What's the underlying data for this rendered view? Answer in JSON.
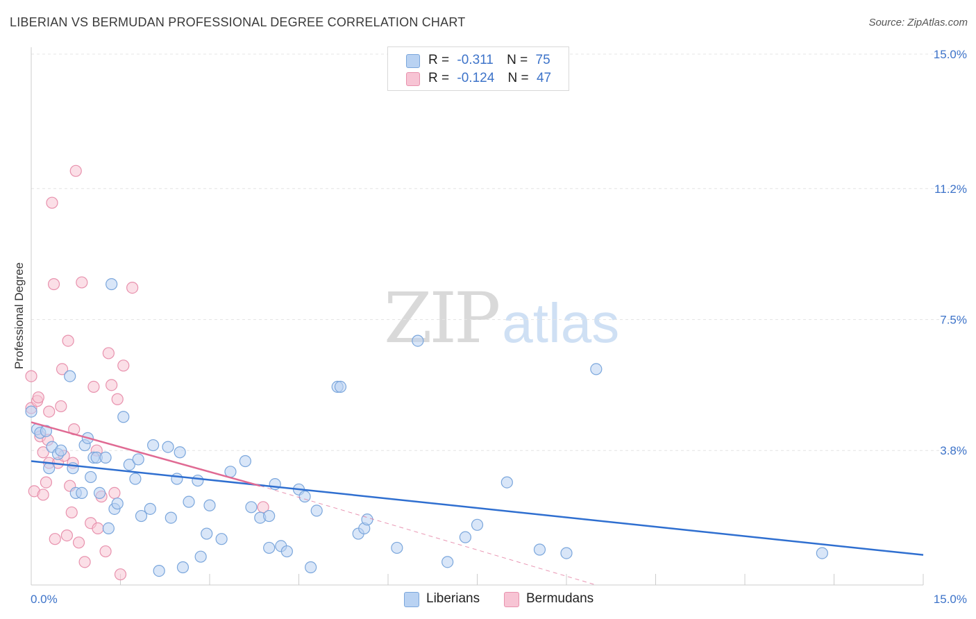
{
  "title": "LIBERIAN VS BERMUDAN PROFESSIONAL DEGREE CORRELATION CHART",
  "source": "Source: ZipAtlas.com",
  "watermark": {
    "zip": "ZIP",
    "atlas": "atlas"
  },
  "legend": {
    "rows": [
      {
        "r_label": "R =",
        "r_value": "-0.311",
        "n_label": "N =",
        "n_value": "75"
      },
      {
        "r_label": "R =",
        "r_value": "-0.124",
        "n_label": "N =",
        "n_value": "47"
      }
    ]
  },
  "bottom_legend": {
    "liberians": "Liberians",
    "bermudans": "Bermudans"
  },
  "colors": {
    "blue_fill": "#b9d2f2",
    "blue_stroke": "#7aa6dc",
    "blue_line": "#2f6fd0",
    "pink_fill": "#f7c4d4",
    "pink_stroke": "#e891ad",
    "pink_line": "#e06a93",
    "grid": "#e4e4e4",
    "tick_text": "#3d73c9"
  },
  "chart_data": {
    "type": "scatter",
    "title": "LIBERIAN VS BERMUDAN PROFESSIONAL DEGREE CORRELATION CHART",
    "xlabel": "",
    "ylabel": "Professional Degree",
    "xlim": [
      0,
      15
    ],
    "ylim": [
      0,
      15
    ],
    "x_tick_labels": [
      "0.0%",
      "15.0%"
    ],
    "y_ticks": [
      3.8,
      7.5,
      11.2,
      15.0
    ],
    "y_tick_labels": [
      "3.8%",
      "7.5%",
      "11.2%",
      "15.0%"
    ],
    "series": [
      {
        "name": "Liberians",
        "r": -0.311,
        "n": 75,
        "trend": {
          "x0": 0.0,
          "y0": 3.5,
          "x1": 15.0,
          "y1": 0.85
        },
        "points": [
          [
            0.0,
            4.9
          ],
          [
            0.1,
            4.4
          ],
          [
            0.15,
            4.3
          ],
          [
            0.25,
            4.35
          ],
          [
            0.3,
            3.3
          ],
          [
            0.35,
            3.9
          ],
          [
            0.45,
            3.7
          ],
          [
            0.5,
            3.8
          ],
          [
            0.65,
            5.9
          ],
          [
            0.7,
            3.3
          ],
          [
            0.75,
            2.6
          ],
          [
            0.85,
            2.6
          ],
          [
            0.9,
            3.95
          ],
          [
            0.95,
            4.15
          ],
          [
            1.0,
            3.05
          ],
          [
            1.05,
            3.6
          ],
          [
            1.1,
            3.6
          ],
          [
            1.15,
            2.6
          ],
          [
            1.25,
            3.6
          ],
          [
            1.3,
            1.6
          ],
          [
            1.35,
            8.5
          ],
          [
            1.4,
            2.15
          ],
          [
            1.45,
            2.3
          ],
          [
            1.55,
            4.75
          ],
          [
            1.65,
            3.4
          ],
          [
            1.75,
            3.0
          ],
          [
            1.8,
            3.55
          ],
          [
            1.85,
            1.95
          ],
          [
            2.0,
            2.15
          ],
          [
            2.05,
            3.95
          ],
          [
            2.15,
            0.4
          ],
          [
            2.3,
            3.9
          ],
          [
            2.35,
            1.9
          ],
          [
            2.45,
            3.0
          ],
          [
            2.5,
            3.75
          ],
          [
            2.55,
            0.5
          ],
          [
            2.65,
            2.35
          ],
          [
            2.8,
            2.95
          ],
          [
            2.85,
            0.8
          ],
          [
            2.95,
            1.45
          ],
          [
            3.0,
            2.25
          ],
          [
            3.2,
            1.3
          ],
          [
            3.35,
            3.2
          ],
          [
            3.6,
            3.5
          ],
          [
            3.7,
            2.2
          ],
          [
            3.85,
            1.9
          ],
          [
            4.0,
            1.05
          ],
          [
            4.0,
            1.95
          ],
          [
            4.1,
            2.85
          ],
          [
            4.2,
            1.1
          ],
          [
            4.3,
            0.95
          ],
          [
            4.5,
            2.7
          ],
          [
            4.6,
            2.5
          ],
          [
            4.7,
            0.5
          ],
          [
            4.8,
            2.1
          ],
          [
            5.15,
            5.6
          ],
          [
            5.2,
            5.6
          ],
          [
            5.5,
            1.45
          ],
          [
            5.6,
            1.6
          ],
          [
            5.65,
            1.85
          ],
          [
            6.15,
            1.05
          ],
          [
            6.5,
            6.9
          ],
          [
            7.0,
            0.65
          ],
          [
            7.3,
            1.35
          ],
          [
            7.5,
            1.7
          ],
          [
            8.0,
            2.9
          ],
          [
            8.55,
            1.0
          ],
          [
            9.0,
            0.9
          ],
          [
            9.5,
            6.1
          ],
          [
            13.3,
            0.9
          ]
        ]
      },
      {
        "name": "Bermudans",
        "r": -0.124,
        "n": 47,
        "trend": {
          "x0": 0.0,
          "y0": 4.6,
          "x1": 3.85,
          "y1": 2.8
        },
        "trend_extension": {
          "x0": 3.85,
          "y0": 2.8,
          "x1": 9.5,
          "y1": 0.0
        },
        "points": [
          [
            0.0,
            5.9
          ],
          [
            0.0,
            5.0
          ],
          [
            0.05,
            2.65
          ],
          [
            0.1,
            5.2
          ],
          [
            0.12,
            5.3
          ],
          [
            0.15,
            4.2
          ],
          [
            0.2,
            2.55
          ],
          [
            0.2,
            3.75
          ],
          [
            0.25,
            2.9
          ],
          [
            0.28,
            4.1
          ],
          [
            0.3,
            4.9
          ],
          [
            0.3,
            3.45
          ],
          [
            0.35,
            10.8
          ],
          [
            0.38,
            8.5
          ],
          [
            0.4,
            1.3
          ],
          [
            0.45,
            3.45
          ],
          [
            0.5,
            5.05
          ],
          [
            0.52,
            6.1
          ],
          [
            0.55,
            3.65
          ],
          [
            0.6,
            1.4
          ],
          [
            0.62,
            6.9
          ],
          [
            0.65,
            2.8
          ],
          [
            0.68,
            2.05
          ],
          [
            0.7,
            3.45
          ],
          [
            0.72,
            4.4
          ],
          [
            0.75,
            11.7
          ],
          [
            0.8,
            1.2
          ],
          [
            0.85,
            8.55
          ],
          [
            0.9,
            0.65
          ],
          [
            1.0,
            1.75
          ],
          [
            1.05,
            5.6
          ],
          [
            1.1,
            3.8
          ],
          [
            1.12,
            1.6
          ],
          [
            1.18,
            2.5
          ],
          [
            1.25,
            0.95
          ],
          [
            1.3,
            6.55
          ],
          [
            1.35,
            5.65
          ],
          [
            1.4,
            2.6
          ],
          [
            1.45,
            5.25
          ],
          [
            1.5,
            0.3
          ],
          [
            1.55,
            6.2
          ],
          [
            1.7,
            8.4
          ],
          [
            3.9,
            2.2
          ]
        ]
      }
    ]
  }
}
